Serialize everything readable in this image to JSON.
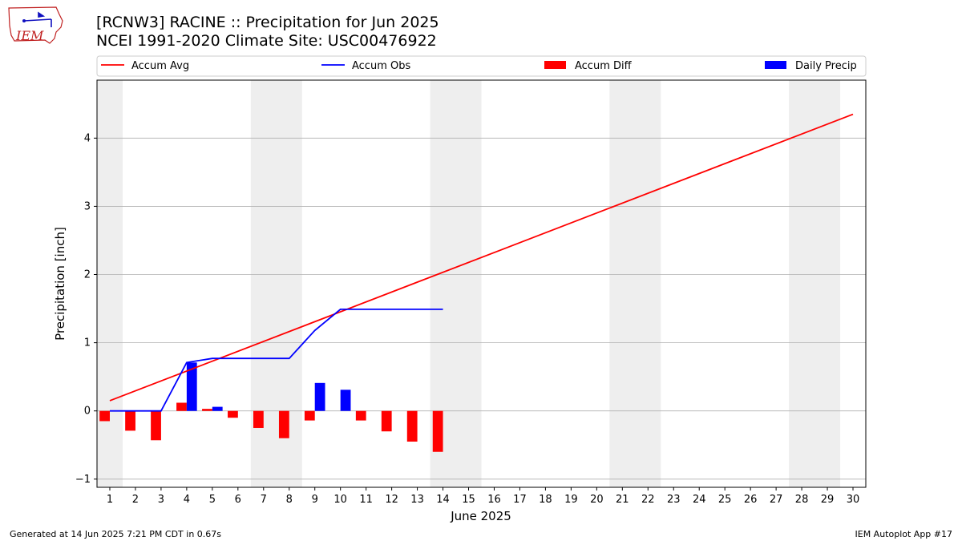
{
  "header": {
    "title_line1": "[RCNW3] RACINE :: Precipitation for Jun 2025",
    "title_line2": "NCEI 1991-2020 Climate Site: USC00476922"
  },
  "logo": {
    "text": "IEM"
  },
  "footer": {
    "generated": "Generated at 14 Jun 2025 7:21 PM CDT in 0.67s",
    "app": "IEM Autoplot App #17"
  },
  "colors": {
    "avg": "#ff0000",
    "obs": "#0000ff",
    "diff": "#ff0000",
    "daily": "#0000ff",
    "weekend": "#eeeeee",
    "grid": "#b0b0b0"
  },
  "chart_data": {
    "type": "bar",
    "title": "[RCNW3] RACINE :: Precipitation for Jun 2025",
    "xlabel": "June 2025",
    "ylabel": "Precipitation [inch]",
    "xlim": [
      0.5,
      30.5
    ],
    "ylim": [
      -1.12,
      4.85
    ],
    "yticks": [
      -1,
      0,
      1,
      2,
      3,
      4
    ],
    "xticks": [
      1,
      2,
      3,
      4,
      5,
      6,
      7,
      8,
      9,
      10,
      11,
      12,
      13,
      14,
      15,
      16,
      17,
      18,
      19,
      20,
      21,
      22,
      23,
      24,
      25,
      26,
      27,
      28,
      29,
      30
    ],
    "grid": "horizontal",
    "weekend_shading": [
      [
        0.5,
        1.5
      ],
      [
        6.5,
        8.5
      ],
      [
        13.5,
        15.5
      ],
      [
        20.5,
        22.5
      ],
      [
        27.5,
        29.5
      ]
    ],
    "legend": [
      "Accum Avg",
      "Accum Obs",
      "Accum Diff",
      "Daily Precip"
    ],
    "legend_placement": "top, above plot",
    "series": [
      {
        "name": "Accum Avg",
        "kind": "line",
        "x": [
          1,
          30
        ],
        "values": [
          0.15,
          4.35
        ]
      },
      {
        "name": "Accum Obs",
        "kind": "line",
        "x": [
          1,
          2,
          3,
          4,
          5,
          6,
          7,
          8,
          9,
          10,
          11,
          12,
          13,
          14
        ],
        "values": [
          0.0,
          0.0,
          0.0,
          0.71,
          0.77,
          0.77,
          0.77,
          0.77,
          1.18,
          1.49,
          1.49,
          1.49,
          1.49,
          1.49
        ]
      },
      {
        "name": "Accum Diff",
        "kind": "bar",
        "x": [
          1,
          2,
          3,
          4,
          5,
          6,
          7,
          8,
          9,
          10,
          11,
          12,
          13,
          14
        ],
        "values": [
          -0.15,
          -0.29,
          -0.43,
          0.12,
          0.03,
          -0.1,
          -0.25,
          -0.4,
          -0.14,
          0.0,
          -0.14,
          -0.3,
          -0.45,
          -0.6
        ]
      },
      {
        "name": "Daily Precip",
        "kind": "bar",
        "x": [
          1,
          2,
          3,
          4,
          5,
          6,
          7,
          8,
          9,
          10,
          11,
          12,
          13,
          14
        ],
        "values": [
          0,
          0,
          0,
          0.71,
          0.06,
          0,
          0,
          0,
          0.41,
          0.31,
          0,
          0,
          0,
          0
        ]
      }
    ]
  }
}
